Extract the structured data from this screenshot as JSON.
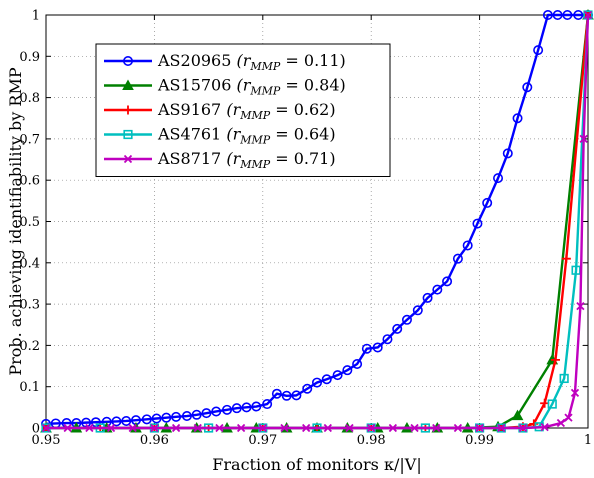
{
  "chart_data": {
    "type": "line",
    "xlabel": "Fraction of monitors κ/|V|",
    "ylabel": "Prob. achieving identifiability by RMP",
    "xlim": [
      0.95,
      1.0
    ],
    "ylim": [
      0,
      1
    ],
    "xticks": [
      0.95,
      0.96,
      0.97,
      0.98,
      0.99,
      1
    ],
    "xtick_labels": [
      "0.95",
      "0.96",
      "0.97",
      "0.98",
      "0.99",
      "1"
    ],
    "yticks": [
      0,
      0.1,
      0.2,
      0.3,
      0.4,
      0.5,
      0.6,
      0.7,
      0.8,
      0.9,
      1
    ],
    "ytick_labels": [
      "0",
      "0.1",
      "0.2",
      "0.3",
      "0.4",
      "0.5",
      "0.6",
      "0.7",
      "0.8",
      "0.9",
      "1"
    ],
    "grid": true,
    "legend_position": "top-left",
    "series": [
      {
        "name": "AS20965",
        "legend_math": "(r",
        "legend_sub": "MMP",
        "legend_eq": " = 0.11)",
        "color": "#0000ff",
        "marker": "circle",
        "x": [
          0.95,
          0.9509,
          0.9519,
          0.9528,
          0.9537,
          0.9546,
          0.9556,
          0.9565,
          0.9574,
          0.9583,
          0.9593,
          0.9602,
          0.9611,
          0.962,
          0.963,
          0.9639,
          0.9648,
          0.9657,
          0.9667,
          0.9676,
          0.9685,
          0.9694,
          0.9704,
          0.9713,
          0.9722,
          0.9731,
          0.9741,
          0.975,
          0.9759,
          0.9769,
          0.9778,
          0.9787,
          0.9796,
          0.9806,
          0.9815,
          0.9824,
          0.9833,
          0.9843,
          0.9852,
          0.9861,
          0.987,
          0.988,
          0.9889,
          0.9898,
          0.9907,
          0.9917,
          0.9926,
          0.9935,
          0.9944,
          0.9954,
          0.9963,
          0.9972,
          0.9981,
          0.9991,
          1.0
        ],
        "y": [
          0.01,
          0.011,
          0.012,
          0.012,
          0.013,
          0.014,
          0.015,
          0.016,
          0.017,
          0.019,
          0.021,
          0.023,
          0.025,
          0.027,
          0.029,
          0.032,
          0.036,
          0.04,
          0.044,
          0.048,
          0.05,
          0.052,
          0.058,
          0.083,
          0.078,
          0.079,
          0.095,
          0.11,
          0.118,
          0.128,
          0.14,
          0.155,
          0.192,
          0.195,
          0.215,
          0.24,
          0.262,
          0.285,
          0.315,
          0.335,
          0.355,
          0.41,
          0.442,
          0.495,
          0.545,
          0.605,
          0.665,
          0.75,
          0.825,
          0.915,
          1.0,
          1.0,
          1.0,
          1.0,
          1.0
        ],
        "x_note": "x values of blue series cover 0.95 to ~0.9963 for rising part"
      },
      {
        "name": "AS15706",
        "legend_math": "(r",
        "legend_sub": "MMP",
        "legend_eq": " = 0.84)",
        "color": "#008000",
        "marker": "triangle",
        "x": [
          0.95,
          0.9528,
          0.9556,
          0.9583,
          0.9611,
          0.9639,
          0.9667,
          0.9694,
          0.9722,
          0.975,
          0.9778,
          0.9806,
          0.9833,
          0.9861,
          0.9889,
          0.9917,
          0.9935,
          0.9967,
          1.0
        ],
        "y": [
          0,
          0,
          0,
          0,
          0,
          0,
          0,
          0,
          0,
          0,
          0,
          0,
          0,
          0,
          0,
          0.003,
          0.03,
          0.165,
          1.0
        ]
      },
      {
        "name": "AS9167",
        "legend_math": "(r",
        "legend_sub": "MMP",
        "legend_eq": " = 0.62)",
        "color": "#ff0000",
        "marker": "plus",
        "x": [
          0.95,
          0.955,
          0.96,
          0.965,
          0.97,
          0.975,
          0.98,
          0.985,
          0.99,
          0.992,
          0.994,
          0.995,
          0.996,
          0.997,
          0.998,
          1.0
        ],
        "y": [
          0,
          0,
          0,
          0,
          0,
          0,
          0,
          0,
          0,
          0,
          0.003,
          0.01,
          0.06,
          0.165,
          0.41,
          1.0
        ]
      },
      {
        "name": "AS4761",
        "legend_math": "(r",
        "legend_sub": "MMP",
        "legend_eq": " = 0.64)",
        "color": "#00bfbf",
        "marker": "square",
        "x": [
          0.95,
          0.955,
          0.96,
          0.965,
          0.97,
          0.975,
          0.98,
          0.985,
          0.99,
          0.992,
          0.994,
          0.9955,
          0.9967,
          0.9978,
          0.9989,
          1.0
        ],
        "y": [
          0,
          0,
          0,
          0,
          0,
          0,
          0,
          0,
          0,
          0,
          0,
          0.003,
          0.058,
          0.12,
          0.382,
          1.0
        ]
      },
      {
        "name": "AS8717",
        "legend_math": "(r",
        "legend_sub": "MMP",
        "legend_eq": " = 0.71)",
        "color": "#bf00bf",
        "marker": "x",
        "x": [
          0.95,
          0.952,
          0.954,
          0.956,
          0.958,
          0.96,
          0.962,
          0.964,
          0.966,
          0.968,
          0.97,
          0.972,
          0.974,
          0.976,
          0.978,
          0.98,
          0.982,
          0.984,
          0.986,
          0.988,
          0.99,
          0.992,
          0.994,
          0.996,
          0.9975,
          0.9982,
          0.9988,
          0.9993,
          0.9996,
          1.0
        ],
        "y": [
          0,
          0,
          0,
          0,
          0,
          0,
          0,
          0,
          0,
          0,
          0,
          0,
          0,
          0,
          0,
          0,
          0,
          0,
          0,
          0,
          0,
          0,
          0,
          0.002,
          0.012,
          0.025,
          0.085,
          0.295,
          0.7,
          1.0
        ]
      }
    ]
  }
}
